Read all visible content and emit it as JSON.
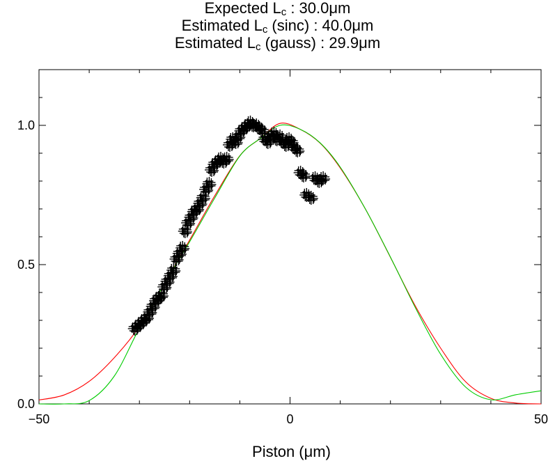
{
  "title": {
    "line1_prefix": "Expected L",
    "line1_sub": "c",
    "line1_suffix": " : 30.0μm",
    "line2_prefix": "Estimated L",
    "line2_sub": "c",
    "line2_suffix": " (sinc) : 40.0μm",
    "line3_prefix": "Estimated L",
    "line3_sub": "c",
    "line3_suffix": " (gauss) : 29.9μm"
  },
  "chart_data": {
    "type": "scatter",
    "xlabel": "Piston (μm)",
    "ylabel": "",
    "xlim": [
      -50,
      50
    ],
    "ylim": [
      0,
      1.2
    ],
    "x_ticks": [
      -50,
      0,
      50
    ],
    "x_tick_labels": [
      "−50",
      "0",
      "50"
    ],
    "y_ticks": [
      0,
      0.5,
      1.0
    ],
    "y_tick_labels": [
      "0.0",
      "0.5",
      "1.0"
    ],
    "grid": false,
    "series": [
      {
        "marker": "plus",
        "color": "#000000",
        "x": [
          -30.9,
          -30.3,
          -29.7,
          -29.1,
          -28.5,
          -27.9,
          -27.3,
          -26.7,
          -26.2,
          -25.6,
          -25.0,
          -24.4,
          -23.8,
          -23.2,
          -22.6,
          -22.0,
          -21.4,
          -20.9,
          -20.3,
          -19.7,
          -19.1,
          -18.5,
          -17.9,
          -17.3,
          -16.7,
          -16.1,
          -15.6,
          -15.0,
          -14.4,
          -13.8,
          -13.2,
          -12.6,
          -12.0,
          -11.4,
          -10.8,
          -10.3,
          -9.7,
          -9.1,
          -8.5,
          -7.9,
          -7.3,
          -6.7,
          -6.1,
          -5.5,
          -5.0,
          -4.4,
          -3.8,
          -3.2,
          -2.6,
          -2.0,
          -1.4,
          -0.8,
          -0.2,
          0.3,
          0.9,
          1.5,
          2.1,
          2.7,
          3.3,
          4.2,
          5.0,
          5.8,
          6.6
        ],
        "y": [
          0.27,
          0.28,
          0.29,
          0.3,
          0.31,
          0.33,
          0.35,
          0.37,
          0.38,
          0.39,
          0.42,
          0.44,
          0.46,
          0.48,
          0.52,
          0.54,
          0.56,
          0.62,
          0.65,
          0.67,
          0.69,
          0.7,
          0.72,
          0.74,
          0.77,
          0.79,
          0.84,
          0.86,
          0.87,
          0.88,
          0.87,
          0.88,
          0.93,
          0.95,
          0.94,
          0.96,
          0.98,
          0.99,
          1.0,
          1.01,
          1.0,
          1.0,
          0.99,
          0.98,
          0.95,
          0.94,
          0.96,
          0.97,
          0.95,
          0.96,
          0.94,
          0.93,
          0.95,
          0.94,
          0.92,
          0.91,
          0.83,
          0.82,
          0.75,
          0.74,
          0.81,
          0.8,
          0.81
        ]
      },
      {
        "name": "sinc",
        "type": "line",
        "color": "#ff0000",
        "x": [
          -50,
          -45,
          -40,
          -35,
          -30,
          -25,
          -20,
          -15,
          -10,
          -6,
          -2,
          2,
          6,
          10,
          15,
          20,
          25,
          30,
          35,
          40,
          45,
          50
        ],
        "y": [
          0.014,
          0.032,
          0.081,
          0.166,
          0.278,
          0.432,
          0.588,
          0.747,
          0.891,
          0.952,
          1.007,
          0.986,
          0.936,
          0.847,
          0.7,
          0.526,
          0.35,
          0.2,
          0.079,
          0.02,
          0.003,
          0.0
        ]
      },
      {
        "name": "gauss",
        "type": "line",
        "color": "#00cc00",
        "x": [
          -50,
          -45,
          -40,
          -35,
          -30,
          -25,
          -20,
          -15,
          -10,
          -6,
          -2,
          2,
          6,
          10,
          15,
          20,
          25,
          30,
          35,
          40,
          45,
          50
        ],
        "y": [
          0.0,
          0.0,
          0.012,
          0.1,
          0.272,
          0.432,
          0.582,
          0.739,
          0.89,
          0.952,
          1.0,
          0.986,
          0.937,
          0.85,
          0.7,
          0.527,
          0.344,
          0.178,
          0.06,
          0.015,
          0.033,
          0.047
        ]
      }
    ]
  }
}
